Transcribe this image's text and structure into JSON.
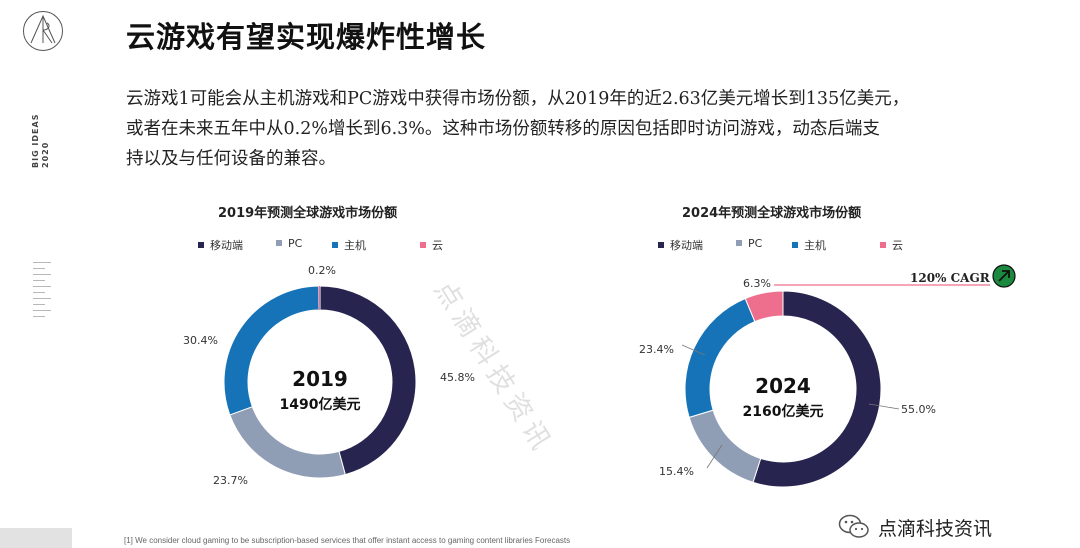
{
  "sidebar": {
    "brand_text": "BIG IDEAS",
    "year_text": "2020"
  },
  "page": {
    "title": "云游戏有望实现爆炸性增长",
    "intro_line1": "云游戏1可能会从主机游戏和PC游戏中获得市场份额，从2019年的近2.63亿美元增长到135亿美元，",
    "intro_line2": "或者在未来五年中从0.2%增长到6.3%。这种市场份额转移的原因包括即时访问游戏，动态后端支",
    "intro_line3": "持以及与任何设备的兼容。"
  },
  "colors": {
    "mobile": "#27254f",
    "pc": "#8f9db5",
    "console": "#1673b7",
    "cloud": "#ee6f8d",
    "cagr_badge": "#1b8a3f"
  },
  "chart_data": [
    {
      "type": "pie",
      "title": "2019年预测全球游戏市场份额",
      "legend": [
        "移动端",
        "PC",
        "主机",
        "云"
      ],
      "slices": [
        {
          "name": "移动端",
          "value": 45.8,
          "label": "45.8%"
        },
        {
          "name": "PC",
          "value": 23.7,
          "label": "23.7%"
        },
        {
          "name": "主机",
          "value": 30.4,
          "label": "30.4%"
        },
        {
          "name": "云",
          "value": 0.2,
          "label": "0.2%"
        }
      ],
      "center_year": "2019",
      "center_total": "1490亿美元"
    },
    {
      "type": "pie",
      "title": "2024年预测全球游戏市场份额",
      "legend": [
        "移动端",
        "PC",
        "主机",
        "云"
      ],
      "slices": [
        {
          "name": "移动端",
          "value": 55.0,
          "label": "55.0%"
        },
        {
          "name": "PC",
          "value": 15.4,
          "label": "15.4%"
        },
        {
          "name": "主机",
          "value": 23.4,
          "label": "23.4%"
        },
        {
          "name": "云",
          "value": 6.3,
          "label": "6.3%"
        }
      ],
      "center_year": "2024",
      "center_total": "2160亿美元",
      "annotation": "120% CAGR"
    }
  ],
  "watermark": "点滴科技资讯",
  "footnote": "[1] We consider cloud gaming to be subscription-based services that offer instant access to gaming content libraries Forecasts",
  "wechat_label": "点滴科技资讯"
}
